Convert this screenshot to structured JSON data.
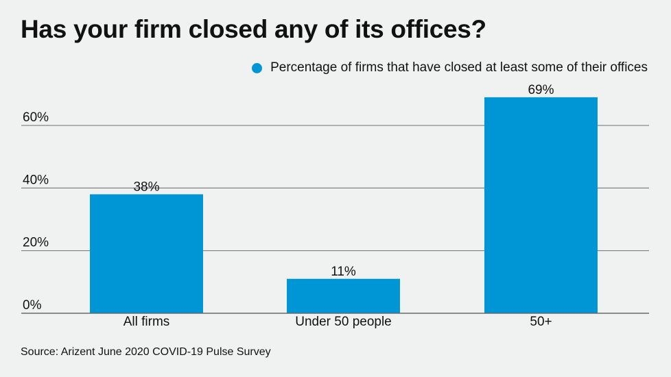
{
  "chart_data": {
    "type": "bar",
    "title": "Has your firm closed any of its offices?",
    "categories": [
      "All firms",
      "Under 50 people",
      "50+"
    ],
    "series": [
      {
        "name": "Percentage of firms that have closed at least some of their offices",
        "values": [
          38,
          11,
          69
        ],
        "color": "#0096d6"
      }
    ],
    "data_labels": [
      "38%",
      "11%",
      "69%"
    ],
    "yticks": [
      0,
      20,
      40,
      60
    ],
    "ytick_labels": [
      "0%",
      "20%",
      "40%",
      "60%"
    ],
    "ylim": [
      0,
      70
    ],
    "grid": true,
    "legend_position": "top-right",
    "source": "Source: Arizent June 2020 COVID-19 Pulse Survey"
  }
}
